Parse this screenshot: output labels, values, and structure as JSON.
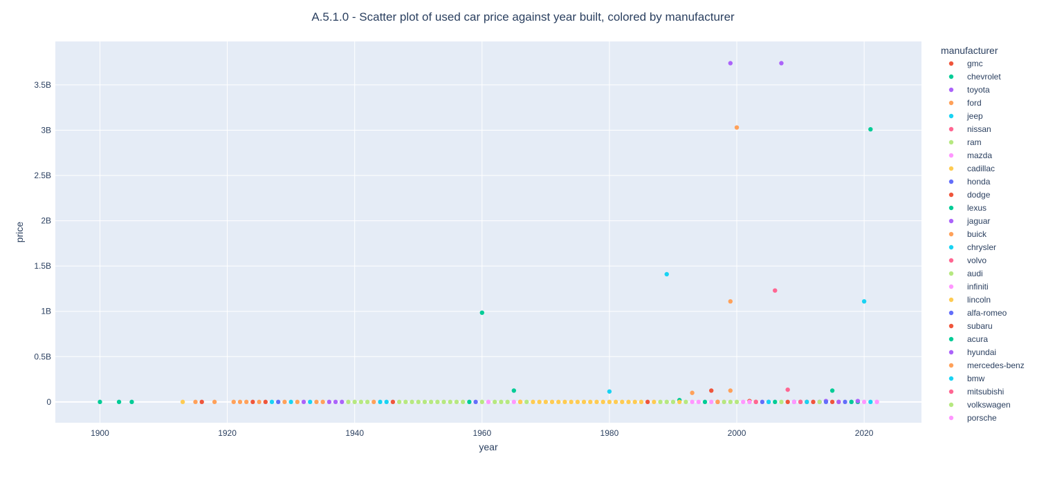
{
  "chart_data": {
    "type": "scatter",
    "title": "A.5.1.0 - Scatter plot of used car price against year built, colored by manufacturer",
    "xlabel": "year",
    "ylabel": "price",
    "xlim": [
      1893,
      2029
    ],
    "ylim": [
      -230000000,
      3980000000
    ],
    "xticks": [
      1900,
      1920,
      1940,
      1960,
      1980,
      2000,
      2020
    ],
    "xtick_labels": [
      "1900",
      "1920",
      "1940",
      "1960",
      "1980",
      "2000",
      "2020"
    ],
    "yticks": [
      0,
      500000000,
      1000000000,
      1500000000,
      2000000000,
      2500000000,
      3000000000,
      3500000000
    ],
    "ytick_labels": [
      "0",
      "0.5B",
      "1B",
      "1.5B",
      "2B",
      "2.5B",
      "3B",
      "3.5B"
    ],
    "grid": true,
    "legend_title": "manufacturer",
    "legend_position": "right",
    "series": [
      {
        "name": "gmc",
        "color": "#EF553B",
        "points": [
          [
            1916,
            0
          ],
          [
            1924,
            0
          ],
          [
            1926,
            0
          ],
          [
            1946,
            0
          ],
          [
            1986,
            0
          ],
          [
            1997,
            0
          ],
          [
            2002,
            10000000
          ],
          [
            2003,
            0
          ],
          [
            2008,
            0
          ],
          [
            2011,
            0
          ],
          [
            2016,
            0
          ]
        ]
      },
      {
        "name": "chevrolet",
        "color": "#00CC96",
        "points": [
          [
            1900,
            0
          ],
          [
            1903,
            0
          ],
          [
            1905,
            0
          ],
          [
            1958,
            0
          ],
          [
            1960,
            985000000
          ],
          [
            1965,
            125000000
          ],
          [
            1991,
            20000000
          ],
          [
            1995,
            0
          ],
          [
            2006,
            0
          ],
          [
            2015,
            125000000
          ],
          [
            2021,
            3010000000
          ]
        ]
      },
      {
        "name": "toyota",
        "color": "#AB63FA",
        "points": [
          [
            1932,
            0
          ],
          [
            1936,
            0
          ],
          [
            1937,
            0
          ],
          [
            1938,
            0
          ],
          [
            1999,
            3740000000
          ],
          [
            2007,
            3740000000
          ],
          [
            2014,
            10000000
          ]
        ]
      },
      {
        "name": "ford",
        "color": "#FFA15A",
        "points": [
          [
            1915,
            0
          ],
          [
            1918,
            0
          ],
          [
            1921,
            0
          ],
          [
            1922,
            0
          ],
          [
            1923,
            0
          ],
          [
            1925,
            0
          ],
          [
            1929,
            0
          ],
          [
            1931,
            0
          ],
          [
            1935,
            0
          ],
          [
            1943,
            0
          ],
          [
            1993,
            100000000
          ],
          [
            1999,
            125000000
          ],
          [
            1999,
            1110000000
          ],
          [
            2000,
            3030000000
          ],
          [
            2002,
            0
          ]
        ]
      },
      {
        "name": "jeep",
        "color": "#19D3F3",
        "points": [
          [
            1927,
            0
          ],
          [
            1930,
            0
          ],
          [
            1933,
            0
          ],
          [
            1944,
            0
          ],
          [
            1945,
            0
          ],
          [
            1980,
            115000000
          ],
          [
            1989,
            1410000000
          ],
          [
            2020,
            1110000000
          ],
          [
            2021,
            0
          ]
        ]
      },
      {
        "name": "nissan",
        "color": "#FF6692",
        "points": [
          [
            2006,
            1230000000
          ],
          [
            2008,
            135000000
          ],
          [
            2019,
            0
          ]
        ]
      },
      {
        "name": "ram",
        "color": "#B6E880",
        "points": [
          [
            1939,
            0
          ],
          [
            1940,
            0
          ],
          [
            1941,
            0
          ],
          [
            1942,
            0
          ],
          [
            1947,
            0
          ],
          [
            1948,
            0
          ],
          [
            1949,
            0
          ],
          [
            1950,
            0
          ],
          [
            1951,
            0
          ],
          [
            1952,
            0
          ],
          [
            1953,
            0
          ],
          [
            1954,
            0
          ],
          [
            1955,
            0
          ],
          [
            1956,
            0
          ],
          [
            1957,
            0
          ],
          [
            1960,
            0
          ],
          [
            1962,
            0
          ],
          [
            1963,
            0
          ],
          [
            1964,
            0
          ],
          [
            1967,
            0
          ],
          [
            1988,
            0
          ],
          [
            1989,
            0
          ],
          [
            1990,
            0
          ],
          [
            1992,
            0
          ],
          [
            1999,
            0
          ],
          [
            2007,
            0
          ]
        ]
      },
      {
        "name": "mazda",
        "color": "#FF97FF",
        "points": [
          [
            1961,
            0
          ],
          [
            1965,
            0
          ],
          [
            1993,
            0
          ],
          [
            1994,
            0
          ],
          [
            1998,
            0
          ],
          [
            2001,
            0
          ],
          [
            2012,
            0
          ],
          [
            2020,
            0
          ],
          [
            2022,
            0
          ]
        ]
      },
      {
        "name": "cadillac",
        "color": "#FECB52",
        "points": [
          [
            1913,
            0
          ],
          [
            1966,
            0
          ],
          [
            1968,
            0
          ],
          [
            1969,
            0
          ],
          [
            1970,
            0
          ],
          [
            1971,
            0
          ],
          [
            1972,
            0
          ],
          [
            1973,
            0
          ],
          [
            1974,
            0
          ],
          [
            1975,
            0
          ],
          [
            1976,
            0
          ],
          [
            1977,
            0
          ],
          [
            1978,
            0
          ],
          [
            1979,
            0
          ],
          [
            1980,
            0
          ],
          [
            1981,
            0
          ],
          [
            1982,
            0
          ],
          [
            1983,
            0
          ],
          [
            1984,
            0
          ],
          [
            1985,
            0
          ],
          [
            1987,
            0
          ]
        ]
      },
      {
        "name": "honda",
        "color": "#636EFA",
        "points": [
          [
            1928,
            0
          ],
          [
            1959,
            0
          ],
          [
            2004,
            0
          ],
          [
            2005,
            0
          ],
          [
            2009,
            0
          ],
          [
            2013,
            0
          ],
          [
            2017,
            0
          ],
          [
            2018,
            0
          ]
        ]
      },
      {
        "name": "dodge",
        "color": "#EF553B",
        "points": [
          [
            1996,
            125000000
          ],
          [
            2010,
            0
          ],
          [
            2015,
            0
          ]
        ]
      },
      {
        "name": "lexus",
        "color": "#00CC96",
        "points": [
          [
            2019,
            0
          ]
        ]
      },
      {
        "name": "jaguar",
        "color": "#AB63FA",
        "points": [
          [
            2019,
            10000000
          ]
        ]
      },
      {
        "name": "buick",
        "color": "#FFA15A",
        "points": [
          [
            1934,
            0
          ],
          [
            1966,
            0
          ]
        ]
      },
      {
        "name": "chrysler",
        "color": "#19D3F3",
        "points": [
          [
            2005,
            0
          ]
        ]
      },
      {
        "name": "volvo",
        "color": "#FF6692",
        "points": [
          [
            2010,
            0
          ]
        ]
      },
      {
        "name": "audi",
        "color": "#B6E880",
        "points": [
          [
            2013,
            0
          ]
        ]
      },
      {
        "name": "infiniti",
        "color": "#FF97FF",
        "points": [
          [
            1996,
            0
          ],
          [
            2009,
            0
          ]
        ]
      },
      {
        "name": "lincoln",
        "color": "#FECB52",
        "points": [
          [
            1966,
            0
          ],
          [
            1991,
            0
          ]
        ]
      },
      {
        "name": "alfa-romeo",
        "color": "#636EFA",
        "points": [
          [
            2014,
            0
          ]
        ]
      },
      {
        "name": "subaru",
        "color": "#EF553B",
        "points": [
          [
            2012,
            0
          ]
        ]
      },
      {
        "name": "acura",
        "color": "#00CC96",
        "points": [
          [
            2018,
            0
          ]
        ]
      },
      {
        "name": "hyundai",
        "color": "#AB63FA",
        "points": [
          [
            2016,
            0
          ]
        ]
      },
      {
        "name": "mercedes-benz",
        "color": "#FFA15A",
        "points": [
          [
            1997,
            0
          ]
        ]
      },
      {
        "name": "bmw",
        "color": "#19D3F3",
        "points": [
          [
            2011,
            0
          ]
        ]
      },
      {
        "name": "mitsubishi",
        "color": "#FF6692",
        "points": [
          [
            2003,
            0
          ]
        ]
      },
      {
        "name": "volkswagen",
        "color": "#B6E880",
        "points": [
          [
            1998,
            0
          ],
          [
            2000,
            0
          ]
        ]
      },
      {
        "name": "porsche",
        "color": "#FF97FF",
        "points": [
          [
            2002,
            0
          ],
          [
            2022,
            0
          ]
        ]
      }
    ]
  }
}
